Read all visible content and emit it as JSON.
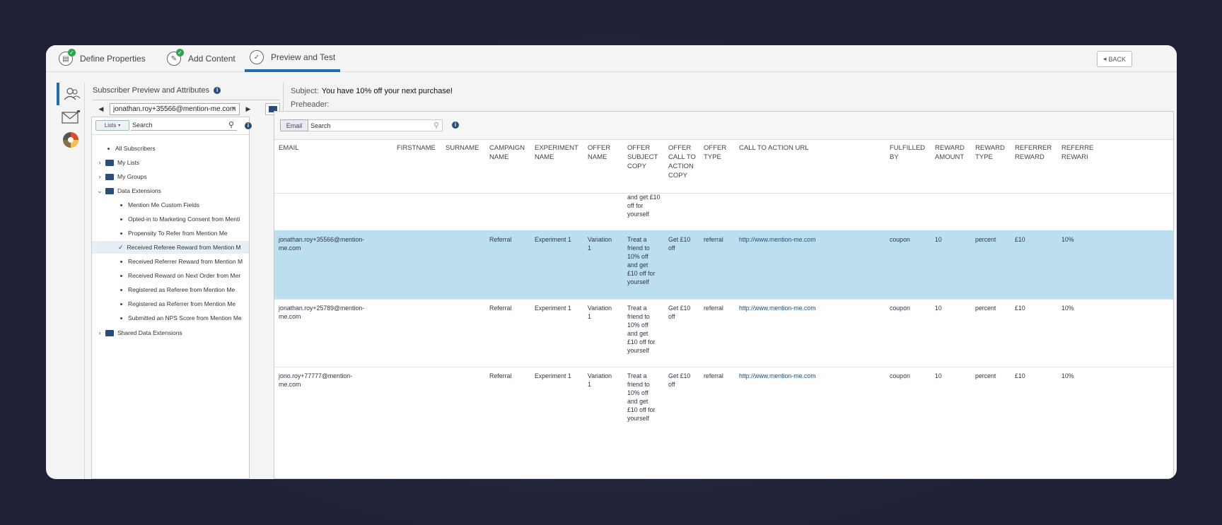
{
  "steps": [
    {
      "label": "Define Properties",
      "done": true
    },
    {
      "label": "Add Content",
      "done": true
    },
    {
      "label": "Preview and Test",
      "active": true
    }
  ],
  "back_label": "BACK",
  "rail_icons": [
    "subscriber-icon",
    "email-icon",
    "color-wheel-icon"
  ],
  "subscriber_panel": {
    "title": "Subscriber Preview and Attributes",
    "selected_email": "jonathan.roy+35566@mention-me.com",
    "lists_label": "Lists",
    "search_placeholder": "Search",
    "tree": [
      {
        "label": "All Subscribers",
        "type": "leaf"
      },
      {
        "label": "My Lists",
        "type": "folder"
      },
      {
        "label": "My Groups",
        "type": "folder"
      },
      {
        "label": "Data Extensions",
        "type": "folder-open"
      },
      {
        "label": "Mention Me Custom Fields",
        "type": "child"
      },
      {
        "label": "Opted-in to Marketing Consent from Menti",
        "type": "child"
      },
      {
        "label": "Propensity To Refer from Mention Me",
        "type": "child"
      },
      {
        "label": "Received Referee Reward from Mention M",
        "type": "child-selected"
      },
      {
        "label": "Received Referrer Reward from Mention M",
        "type": "child"
      },
      {
        "label": "Received Reward on Next Order from Mer",
        "type": "child"
      },
      {
        "label": "Registered as Referee from Mention Me",
        "type": "child"
      },
      {
        "label": "Registered as Referrer from Mention Me",
        "type": "child"
      },
      {
        "label": "Submitted an NPS Score from Mention Me",
        "type": "child"
      },
      {
        "label": "Shared Data Extensions",
        "type": "folder"
      }
    ]
  },
  "preview": {
    "subject_label": "Subject:",
    "subject_value": "You have 10% off your next purchase!",
    "preheader_label": "Preheader:"
  },
  "grid": {
    "email_tab": "Email",
    "search_placeholder": "Search",
    "columns": [
      "EMAIL",
      "FIRSTNAME",
      "SURNAME",
      "CAMPAIGN NAME",
      "EXPERIMENT NAME",
      "OFFER NAME",
      "OFFER SUBJECT COPY",
      "OFFER CALL TO ACTION COPY",
      "OFFER TYPE",
      "CALL TO ACTION URL",
      "FULFILLED BY",
      "REWARD AMOUNT",
      "REWARD TYPE",
      "REFERRER REWARD",
      "REFERRE REWARI"
    ],
    "partial_row_text": "and get £10 off for yourself",
    "rows": [
      {
        "email": "jonathan.roy+35566@mention-me.com",
        "campaign": "Referral",
        "experiment": "Experiment 1",
        "offer": "Variation 1",
        "subject_copy": "Treat a friend to 10% off and get £10 off for yourself",
        "cta_copy": "Get £10 off",
        "type": "referral",
        "url": "http://www.mention-me.com",
        "fulfilled": "coupon",
        "amount": "10",
        "reward_type": "percent",
        "referrer_reward": "£10",
        "referee_reward": "10%",
        "selected": true
      },
      {
        "email": "jonathan.roy+25789@mention-me.com",
        "campaign": "Referral",
        "experiment": "Experiment 1",
        "offer": "Variation 1",
        "subject_copy": "Treat a friend to 10% off and get £10 off for yourself",
        "cta_copy": "Get £10 off",
        "type": "referral",
        "url": "http://www.mention-me.com",
        "fulfilled": "coupon",
        "amount": "10",
        "reward_type": "percent",
        "referrer_reward": "£10",
        "referee_reward": "10%"
      },
      {
        "email": "jono.roy+77777@mention-me.com",
        "campaign": "Referral",
        "experiment": "Experiment 1",
        "offer": "Variation 1",
        "subject_copy": "Treat a friend to 10% off and get £10 off for yourself",
        "cta_copy": "Get £10 off",
        "type": "referral",
        "url": "http://www.mention-me.com",
        "fulfilled": "coupon",
        "amount": "10",
        "reward_type": "percent",
        "referrer_reward": "£10",
        "referee_reward": "10%"
      }
    ]
  }
}
